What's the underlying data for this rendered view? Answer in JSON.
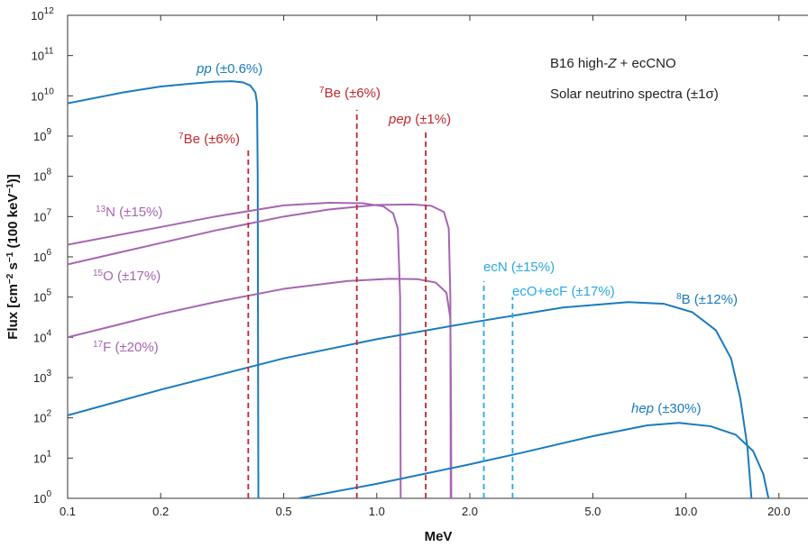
{
  "chart_data": {
    "type": "line",
    "title": "",
    "xlabel": "MeV",
    "ylabel": "Flux [cm⁻² s⁻¹ (100 keV⁻¹)]",
    "x_scale": "log",
    "y_scale": "log",
    "xlim": [
      0.1,
      25
    ],
    "ylim": [
      1,
      1000000000000.0
    ],
    "x_ticks": [
      {
        "value": 0.1,
        "label": "0.1"
      },
      {
        "value": 0.2,
        "label": "0.2"
      },
      {
        "value": 0.5,
        "label": "0.5"
      },
      {
        "value": 1.0,
        "label": "1.0"
      },
      {
        "value": 2.0,
        "label": "2.0"
      },
      {
        "value": 5.0,
        "label": "5.0"
      },
      {
        "value": 10.0,
        "label": "10.0"
      },
      {
        "value": 20.0,
        "label": "20.0"
      }
    ],
    "y_ticks": [
      {
        "value": 1,
        "base": "10",
        "exp": "0"
      },
      {
        "value": 10,
        "base": "10",
        "exp": "1"
      },
      {
        "value": 100,
        "base": "10",
        "exp": "2"
      },
      {
        "value": 1000,
        "base": "10",
        "exp": "3"
      },
      {
        "value": 10000,
        "base": "10",
        "exp": "4"
      },
      {
        "value": 100000,
        "base": "10",
        "exp": "5"
      },
      {
        "value": 1000000,
        "base": "10",
        "exp": "6"
      },
      {
        "value": 10000000,
        "base": "10",
        "exp": "7"
      },
      {
        "value": 100000000,
        "base": "10",
        "exp": "8"
      },
      {
        "value": 1000000000,
        "base": "10",
        "exp": "9"
      },
      {
        "value": 10000000000,
        "base": "10",
        "exp": "10"
      },
      {
        "value": 100000000000,
        "base": "10",
        "exp": "11"
      },
      {
        "value": 1000000000000,
        "base": "10",
        "exp": "12"
      }
    ],
    "annotations": [
      "B16 high-Z + ecCNO",
      "Solar neutrino spectra (±1σ)"
    ],
    "series": [
      {
        "name": "pp (±0.6%)",
        "color": "#1a7bbf",
        "style": "solid",
        "points": [
          [
            0.1,
            6500000000.0
          ],
          [
            0.15,
            12000000000.0
          ],
          [
            0.2,
            17000000000.0
          ],
          [
            0.25,
            20000000000.0
          ],
          [
            0.3,
            22500000000.0
          ],
          [
            0.34,
            23000000000.0
          ],
          [
            0.37,
            21500000000.0
          ],
          [
            0.39,
            18000000000.0
          ],
          [
            0.405,
            12000000000.0
          ],
          [
            0.41,
            6500000000.0
          ],
          [
            0.412,
            100000000.0
          ],
          [
            0.413,
            10000.0
          ],
          [
            0.414,
            1
          ]
        ]
      },
      {
        "name": "13N (±15%)",
        "color": "#a765b3",
        "style": "solid",
        "points": [
          [
            0.1,
            2000000.0
          ],
          [
            0.2,
            5500000.0
          ],
          [
            0.3,
            10000000.0
          ],
          [
            0.5,
            19000000.0
          ],
          [
            0.7,
            22000000.0
          ],
          [
            0.9,
            21500000.0
          ],
          [
            1.05,
            18000000.0
          ],
          [
            1.13,
            12000000.0
          ],
          [
            1.17,
            5000000.0
          ],
          [
            1.19,
            100000.0
          ],
          [
            1.195,
            1
          ]
        ]
      },
      {
        "name": "15O (±17%)",
        "color": "#a765b3",
        "style": "solid",
        "points": [
          [
            0.1,
            650000.0
          ],
          [
            0.2,
            2200000.0
          ],
          [
            0.3,
            4500000.0
          ],
          [
            0.5,
            10000000.0
          ],
          [
            0.7,
            15000000.0
          ],
          [
            1.0,
            19500000.0
          ],
          [
            1.3,
            20000000.0
          ],
          [
            1.5,
            18500000.0
          ],
          [
            1.65,
            13000000.0
          ],
          [
            1.71,
            5000000.0
          ],
          [
            1.73,
            100000.0
          ],
          [
            1.735,
            1
          ]
        ]
      },
      {
        "name": "17F (±20%)",
        "color": "#a765b3",
        "style": "solid",
        "points": [
          [
            0.1,
            10000.0
          ],
          [
            0.2,
            38000.0
          ],
          [
            0.3,
            75000.0
          ],
          [
            0.5,
            160000.0
          ],
          [
            0.8,
            250000.0
          ],
          [
            1.1,
            285000.0
          ],
          [
            1.35,
            280000.0
          ],
          [
            1.55,
            230000.0
          ],
          [
            1.68,
            130000.0
          ],
          [
            1.73,
            30000.0
          ],
          [
            1.74,
            100
          ],
          [
            1.742,
            1
          ]
        ]
      },
      {
        "name": "8B (±12%)",
        "color": "#1a7bbf",
        "style": "solid",
        "points": [
          [
            0.1,
            115
          ],
          [
            0.2,
            500
          ],
          [
            0.5,
            3000
          ],
          [
            1.0,
            9000
          ],
          [
            2.0,
            23000.0
          ],
          [
            4.0,
            55000.0
          ],
          [
            6.5,
            75000.0
          ],
          [
            8.5,
            68000.0
          ],
          [
            10.5,
            42000.0
          ],
          [
            12.5,
            15000.0
          ],
          [
            14.0,
            3000
          ],
          [
            15.0,
            300
          ],
          [
            15.8,
            20
          ],
          [
            16.3,
            1
          ]
        ]
      },
      {
        "name": "hep (±30%)",
        "color": "#1a7bbf",
        "style": "solid",
        "points": [
          [
            0.56,
            1
          ],
          [
            1.0,
            2.3
          ],
          [
            2.0,
            7
          ],
          [
            3.0,
            14
          ],
          [
            5.0,
            35
          ],
          [
            7.5,
            65
          ],
          [
            9.5,
            75
          ],
          [
            12.0,
            62
          ],
          [
            14.5,
            38
          ],
          [
            16.5,
            15
          ],
          [
            17.8,
            4
          ],
          [
            18.5,
            1
          ]
        ]
      },
      {
        "name": "7Be (±6%)",
        "color": "#c1272d",
        "style": "dashed",
        "points": [
          [
            0.384,
            1
          ],
          [
            0.384,
            500000000.0
          ]
        ]
      },
      {
        "name": "7Be (±6%)",
        "color": "#c1272d",
        "style": "dashed",
        "points": [
          [
            0.862,
            1
          ],
          [
            0.862,
            4500000000.0
          ]
        ]
      },
      {
        "name": "pep (±1%)",
        "color": "#c1272d",
        "style": "dashed",
        "points": [
          [
            1.44,
            1
          ],
          [
            1.44,
            1300000000.0
          ]
        ]
      },
      {
        "name": "ecN (±15%)",
        "color": "#29a9e0",
        "style": "dashed",
        "points": [
          [
            2.22,
            1
          ],
          [
            2.22,
            250000.0
          ]
        ]
      },
      {
        "name": "ecO+ecF (±17%)",
        "color": "#29a9e0",
        "style": "dashed",
        "points": [
          [
            2.75,
            1
          ],
          [
            2.75,
            100000.0
          ]
        ]
      }
    ],
    "grid": false,
    "legend": "none"
  }
}
